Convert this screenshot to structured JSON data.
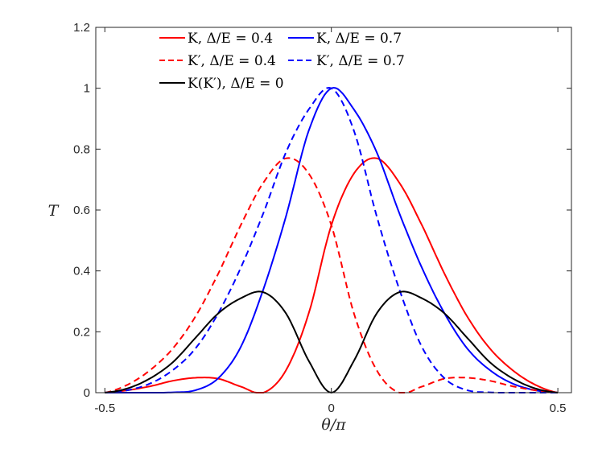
{
  "chart_data": {
    "type": "line",
    "title": "",
    "xlabel": "θ/π",
    "ylabel": "T",
    "xlim": [
      -0.52,
      0.53
    ],
    "ylim": [
      0,
      1.2
    ],
    "xticks": [
      -0.5,
      0,
      0.5
    ],
    "xtick_labels": [
      "-0.5",
      "0",
      "0.5"
    ],
    "yticks": [
      0,
      0.2,
      0.4,
      0.6,
      0.8,
      1,
      1.2
    ],
    "ytick_labels": [
      "0",
      "0.2",
      "0.4",
      "0.6",
      "0.8",
      "1",
      "1.2"
    ],
    "grid": false,
    "box": true,
    "legend_placement": "top",
    "x": [
      -0.5,
      -0.45,
      -0.4,
      -0.35,
      -0.3,
      -0.25,
      -0.2,
      -0.15,
      -0.1,
      -0.05,
      0,
      0.05,
      0.1,
      0.15,
      0.2,
      0.25,
      0.3,
      0.35,
      0.4,
      0.45,
      0.5
    ],
    "series": [
      {
        "name": "K, Δ/E = 0.4",
        "color": "#ff0000",
        "dash": false,
        "values": [
          0,
          0.008,
          0.021,
          0.039,
          0.049,
          0.046,
          0.02,
          0.0,
          0.074,
          0.26,
          0.55,
          0.72,
          0.77,
          0.69,
          0.55,
          0.39,
          0.25,
          0.145,
          0.074,
          0.026,
          0
        ]
      },
      {
        "name": "K, Δ/E = 0.7",
        "color": "#0000ff",
        "dash": false,
        "values": [
          0,
          0,
          0,
          0.001,
          0.008,
          0.047,
          0.15,
          0.34,
          0.58,
          0.86,
          1.0,
          0.93,
          0.79,
          0.59,
          0.41,
          0.26,
          0.145,
          0.074,
          0.03,
          0.008,
          0
        ]
      },
      {
        "name": "K′, Δ/E = 0.4",
        "color": "#ff0000",
        "dash": true,
        "values": [
          0,
          0.026,
          0.074,
          0.145,
          0.25,
          0.39,
          0.55,
          0.69,
          0.77,
          0.72,
          0.55,
          0.26,
          0.074,
          0,
          0.02,
          0.046,
          0.049,
          0.039,
          0.021,
          0.008,
          0
        ]
      },
      {
        "name": "K′, Δ/E = 0.7",
        "color": "#0000ff",
        "dash": true,
        "values": [
          0,
          0.008,
          0.03,
          0.074,
          0.145,
          0.26,
          0.41,
          0.59,
          0.79,
          0.93,
          1.0,
          0.86,
          0.58,
          0.34,
          0.15,
          0.047,
          0.008,
          0.001,
          0,
          0,
          0
        ]
      },
      {
        "name": "K(K′), Δ/E = 0",
        "color": "#000000",
        "dash": false,
        "values": [
          0,
          0.014,
          0.047,
          0.1,
          0.18,
          0.26,
          0.31,
          0.33,
          0.26,
          0.105,
          0,
          0.105,
          0.26,
          0.33,
          0.31,
          0.26,
          0.18,
          0.1,
          0.047,
          0.014,
          0
        ]
      }
    ]
  }
}
